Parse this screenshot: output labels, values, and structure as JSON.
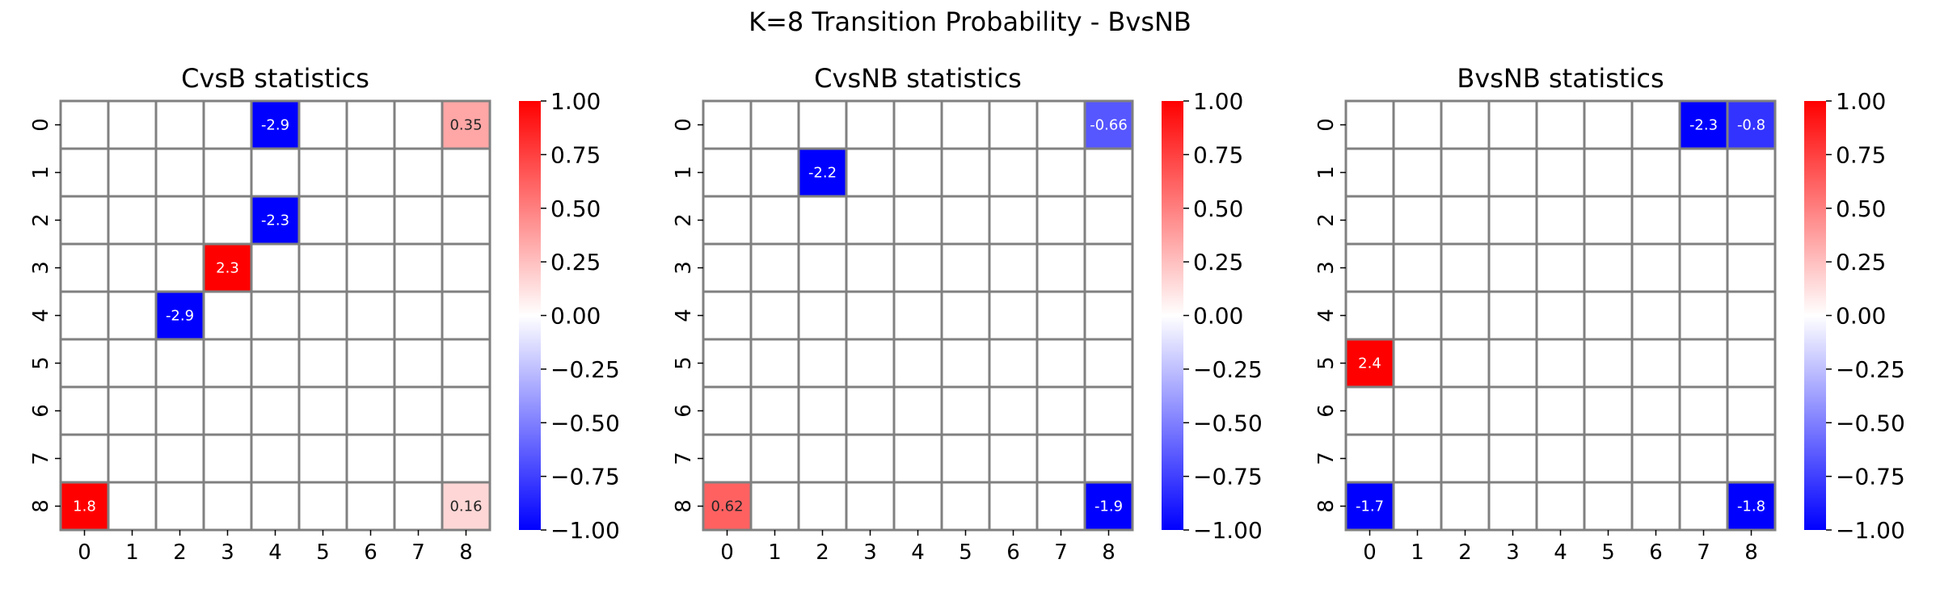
{
  "title": "K=8 Transition Probability - BvsNB",
  "colorbar": {
    "vmin": -1.0,
    "vmax": 1.0,
    "ticks": [
      "1.00",
      "0.75",
      "0.50",
      "0.25",
      "0.00",
      "−0.25",
      "−0.50",
      "−0.75",
      "−1.00"
    ],
    "colormap": [
      "#0000ff",
      "#ffffff",
      "#ff0000"
    ]
  },
  "chart_data": [
    {
      "type": "heatmap",
      "title": "CvsB statistics",
      "x_labels": [
        "0",
        "1",
        "2",
        "3",
        "4",
        "5",
        "6",
        "7",
        "8"
      ],
      "y_labels": [
        "0",
        "1",
        "2",
        "3",
        "4",
        "5",
        "6",
        "7",
        "8"
      ],
      "cells": [
        {
          "row": 0,
          "col": 4,
          "value": -2.9,
          "label": "-2.9"
        },
        {
          "row": 0,
          "col": 8,
          "value": 0.35,
          "label": "0.35"
        },
        {
          "row": 2,
          "col": 4,
          "value": -2.3,
          "label": "-2.3"
        },
        {
          "row": 3,
          "col": 3,
          "value": 2.3,
          "label": "2.3"
        },
        {
          "row": 4,
          "col": 2,
          "value": -2.9,
          "label": "-2.9"
        },
        {
          "row": 8,
          "col": 0,
          "value": 1.8,
          "label": "1.8"
        },
        {
          "row": 8,
          "col": 8,
          "value": 0.16,
          "label": "0.16"
        }
      ]
    },
    {
      "type": "heatmap",
      "title": "CvsNB statistics",
      "x_labels": [
        "0",
        "1",
        "2",
        "3",
        "4",
        "5",
        "6",
        "7",
        "8"
      ],
      "y_labels": [
        "0",
        "1",
        "2",
        "3",
        "4",
        "5",
        "6",
        "7",
        "8"
      ],
      "cells": [
        {
          "row": 0,
          "col": 8,
          "value": -0.66,
          "label": "-0.66"
        },
        {
          "row": 1,
          "col": 2,
          "value": -2.2,
          "label": "-2.2"
        },
        {
          "row": 8,
          "col": 0,
          "value": 0.62,
          "label": "0.62"
        },
        {
          "row": 8,
          "col": 8,
          "value": -1.9,
          "label": "-1.9"
        }
      ]
    },
    {
      "type": "heatmap",
      "title": "BvsNB statistics",
      "x_labels": [
        "0",
        "1",
        "2",
        "3",
        "4",
        "5",
        "6",
        "7",
        "8"
      ],
      "y_labels": [
        "0",
        "1",
        "2",
        "3",
        "4",
        "5",
        "6",
        "7",
        "8"
      ],
      "cells": [
        {
          "row": 0,
          "col": 7,
          "value": -2.3,
          "label": "-2.3"
        },
        {
          "row": 0,
          "col": 8,
          "value": -0.8,
          "label": "-0.8"
        },
        {
          "row": 5,
          "col": 0,
          "value": 2.4,
          "label": "2.4"
        },
        {
          "row": 8,
          "col": 0,
          "value": -1.7,
          "label": "-1.7"
        },
        {
          "row": 8,
          "col": 8,
          "value": -1.8,
          "label": "-1.8"
        }
      ]
    }
  ]
}
